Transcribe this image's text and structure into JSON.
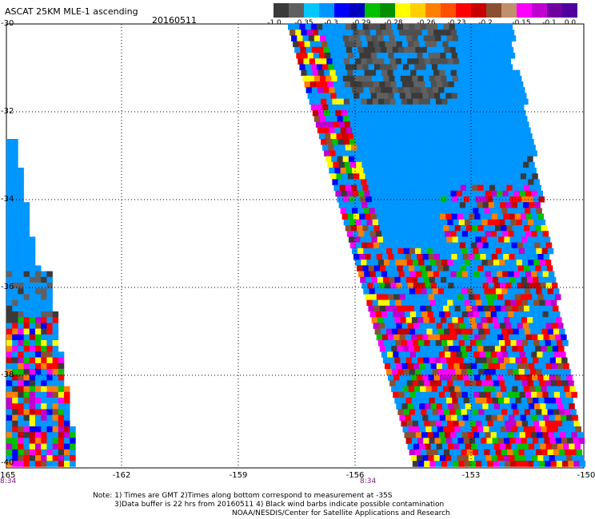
{
  "header": {
    "title": "ASCAT 25KM MLE-1 ascending",
    "date": "20160511"
  },
  "colorbar": {
    "colors": [
      "#3a3a3a",
      "#606060",
      "#00c8ff",
      "#0096ff",
      "#0000ff",
      "#0000c0",
      "#00c000",
      "#009000",
      "#ffff00",
      "#ffd000",
      "#ff8000",
      "#ff5000",
      "#ff0000",
      "#c80000",
      "#8b5030",
      "#c0906a",
      "#ff00ff",
      "#c000d0",
      "#7000a0",
      "#5000a0"
    ],
    "labels": [
      "-1.0",
      "-0.35",
      "-0.3",
      "-0.29",
      "-0.28",
      "-0.26",
      "-0.23",
      "-0.2",
      "-0.15",
      "-0.1",
      "0.0"
    ]
  },
  "map": {
    "y_labels": [
      "-30",
      "-32",
      "-34",
      "-36",
      "-38",
      "-40"
    ],
    "x_labels": [
      "-165",
      "-162",
      "-159",
      "-156",
      "-153",
      "-150"
    ],
    "time_labels": [
      "8:34",
      "8:34"
    ]
  },
  "notes": {
    "line1": "Note: 1) Times are GMT 2)Times along bottom correspond to measurement at -35S",
    "line2": "3)Data buffer is 22 hrs from 20160511 4) Black wind barbs indicate possible contamination",
    "line3": "NOAA/NESDIS/Center for Satellite Applications and Research"
  }
}
